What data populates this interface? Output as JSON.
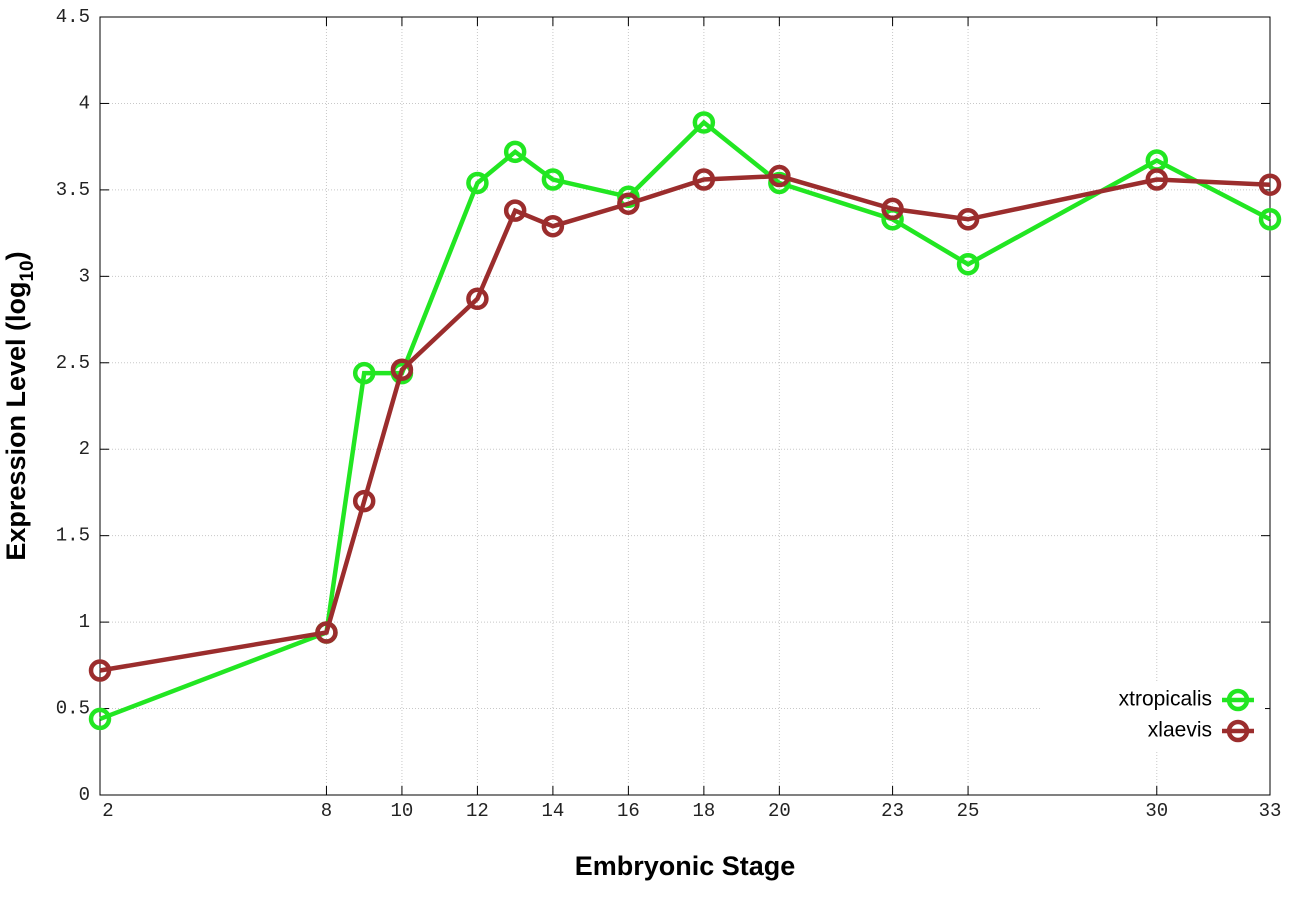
{
  "chart_data": {
    "type": "line",
    "x_label": "Embryonic Stage",
    "y_label": {
      "text": "Expression Level (log",
      "sub": "10",
      "end": ")"
    },
    "x": [
      2,
      8,
      9,
      10,
      12,
      13,
      14,
      16,
      18,
      20,
      23,
      25,
      30,
      33
    ],
    "series": [
      {
        "name": "xtropicalis",
        "color": "#22e622",
        "values": [
          0.44,
          0.94,
          2.44,
          2.44,
          3.54,
          3.72,
          3.56,
          3.46,
          3.89,
          3.54,
          3.33,
          3.07,
          3.67,
          3.33
        ]
      },
      {
        "name": "xlaevis",
        "color": "#9b2d2d",
        "values": [
          0.72,
          0.94,
          1.7,
          2.46,
          2.87,
          3.38,
          3.29,
          3.42,
          3.56,
          3.58,
          3.39,
          3.33,
          3.56,
          3.53
        ]
      }
    ],
    "xlim": [
      2,
      33
    ],
    "xticks": [
      2,
      8,
      10,
      12,
      14,
      16,
      18,
      20,
      23,
      25,
      30,
      33
    ],
    "ylim": [
      0,
      4.5
    ],
    "yticks": [
      0,
      0.5,
      1,
      1.5,
      2,
      2.5,
      3,
      3.5,
      4,
      4.5
    ],
    "grid": true,
    "legend": "bottom-right"
  }
}
